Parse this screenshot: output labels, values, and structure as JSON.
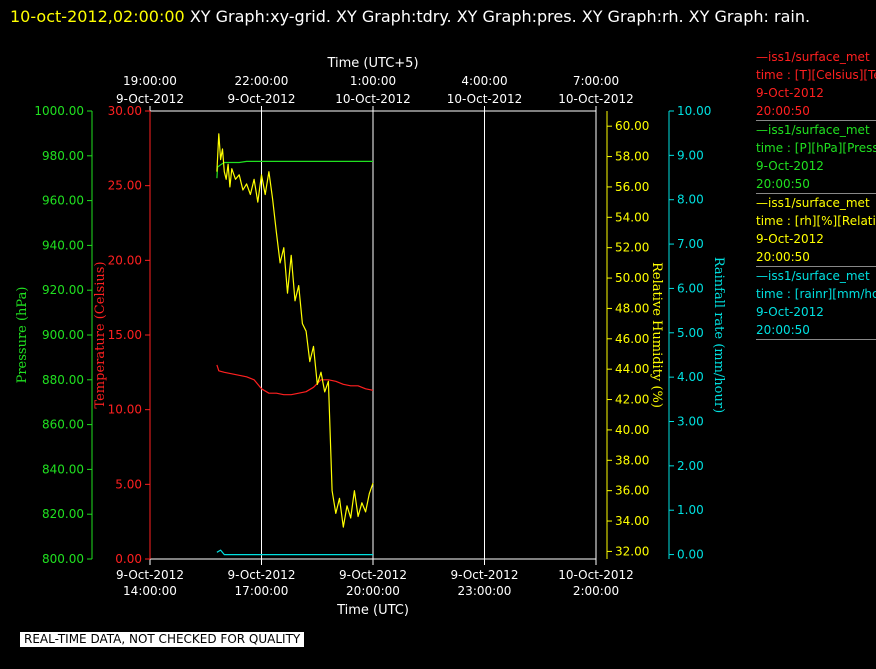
{
  "header": {
    "timestamp": "10-oct-2012,02:00:00",
    "graphs": "XY Graph:xy-grid.  XY Graph:tdry.  XY Graph:pres.  XY Graph:rh.  XY Graph: rain."
  },
  "legend": [
    {
      "color": "#ff2020",
      "line1": "—iss1/surface_met",
      "line2": "time : [T][Celsius][Temp",
      "date": "9-Oct-2012",
      "time": "20:00:50"
    },
    {
      "color": "#20e020",
      "line1": "—iss1/surface_met",
      "line2": "time : [P][hPa][Pressure",
      "date": "9-Oct-2012",
      "time": "20:00:50"
    },
    {
      "color": "#ffff00",
      "line1": "—iss1/surface_met",
      "line2": "time : [rh][%][Relative",
      "date": "9-Oct-2012",
      "time": "20:00:50"
    },
    {
      "color": "#00e0e0",
      "line1": "—iss1/surface_met",
      "line2": "time : [rainr][mm/hour",
      "date": "9-Oct-2012",
      "time": "20:00:50"
    }
  ],
  "footer": "REAL-TIME DATA, NOT CHECKED FOR QUALITY",
  "chart_data": {
    "type": "line",
    "grid": true,
    "top_axis": {
      "label": "Time (UTC+5)",
      "ticks": [
        {
          "x": 0,
          "time": "19:00:00",
          "date": "9-Oct-2012"
        },
        {
          "x": 3,
          "time": "22:00:00",
          "date": "9-Oct-2012"
        },
        {
          "x": 6,
          "time": "1:00:00",
          "date": "10-Oct-2012"
        },
        {
          "x": 9,
          "time": "4:00:00",
          "date": "10-Oct-2012"
        },
        {
          "x": 12,
          "time": "7:00:00",
          "date": "10-Oct-2012"
        }
      ]
    },
    "bottom_axis": {
      "label": "Time (UTC)",
      "xlim": [
        0,
        12
      ],
      "ticks": [
        {
          "x": 0,
          "date": "9-Oct-2012",
          "time": "14:00:00"
        },
        {
          "x": 3,
          "date": "9-Oct-2012",
          "time": "17:00:00"
        },
        {
          "x": 6,
          "date": "9-Oct-2012",
          "time": "20:00:00"
        },
        {
          "x": 9,
          "date": "9-Oct-2012",
          "time": "23:00:00"
        },
        {
          "x": 12,
          "date": "10-Oct-2012",
          "time": "2:00:00"
        }
      ]
    },
    "axes": {
      "pressure": {
        "label": "Pressure (hPa)",
        "color": "#20e020",
        "ylim": [
          800,
          1000
        ],
        "ticks": [
          "800.00",
          "820.00",
          "840.00",
          "860.00",
          "880.00",
          "900.00",
          "920.00",
          "940.00",
          "960.00",
          "980.00",
          "1000.00"
        ]
      },
      "temperature": {
        "label": "Temperature (Celsius)",
        "color": "#ff2020",
        "ylim": [
          0,
          30
        ],
        "ticks": [
          "0.00",
          "5.00",
          "10.00",
          "15.00",
          "20.00",
          "25.00",
          "30.00"
        ]
      },
      "rh": {
        "label": "Relative Humidity (%)",
        "color": "#ffff00",
        "ylim": [
          31.5,
          61
        ],
        "ticks": [
          "32.00",
          "34.00",
          "36.00",
          "38.00",
          "40.00",
          "42.00",
          "44.00",
          "46.00",
          "48.00",
          "50.00",
          "52.00",
          "54.00",
          "56.00",
          "58.00",
          "60.00"
        ]
      },
      "rain": {
        "label": "Rainfall rate (mm/hour)",
        "color": "#00e0e0",
        "ylim": [
          -0.1,
          10
        ],
        "ticks": [
          "0.00",
          "1.00",
          "2.00",
          "3.00",
          "4.00",
          "5.00",
          "6.00",
          "7.00",
          "8.00",
          "9.00",
          "10.00"
        ]
      }
    },
    "series": [
      {
        "axis": "pressure",
        "x": [
          1.8,
          1.82,
          1.9,
          2.0,
          2.2,
          2.4,
          2.6,
          3.0,
          3.5,
          4.0,
          4.5,
          5.0,
          5.5,
          6.0
        ],
        "y": [
          970,
          975,
          976,
          977,
          977,
          977,
          977.5,
          977.5,
          977.5,
          977.5,
          977.5,
          977.5,
          977.5,
          977.5
        ]
      },
      {
        "axis": "temperature",
        "x": [
          1.8,
          1.85,
          2.0,
          2.2,
          2.4,
          2.6,
          2.8,
          3.0,
          3.2,
          3.4,
          3.6,
          3.8,
          4.0,
          4.2,
          4.4,
          4.6,
          4.8,
          5.0,
          5.2,
          5.4,
          5.6,
          5.8,
          6.0
        ],
        "y": [
          13.0,
          12.6,
          12.5,
          12.4,
          12.3,
          12.2,
          12.0,
          11.4,
          11.1,
          11.1,
          11.0,
          11.0,
          11.1,
          11.2,
          11.5,
          12.0,
          12.0,
          11.9,
          11.7,
          11.6,
          11.6,
          11.4,
          11.3
        ]
      },
      {
        "axis": "rh",
        "x": [
          1.8,
          1.85,
          1.9,
          1.95,
          2.0,
          2.05,
          2.1,
          2.15,
          2.2,
          2.3,
          2.4,
          2.5,
          2.6,
          2.7,
          2.8,
          2.9,
          3.0,
          3.1,
          3.2,
          3.3,
          3.4,
          3.5,
          3.6,
          3.7,
          3.8,
          3.9,
          4.0,
          4.1,
          4.2,
          4.3,
          4.4,
          4.5,
          4.6,
          4.7,
          4.8,
          4.9,
          5.0,
          5.1,
          5.2,
          5.3,
          5.4,
          5.5,
          5.6,
          5.7,
          5.8,
          5.9,
          6.0
        ],
        "y": [
          57.0,
          59.5,
          57.8,
          58.5,
          57.0,
          56.5,
          57.5,
          56.0,
          57.2,
          56.5,
          56.8,
          55.8,
          56.2,
          55.5,
          56.5,
          55.0,
          56.8,
          55.5,
          57.0,
          55.2,
          53.0,
          51.0,
          52.0,
          49.0,
          51.5,
          48.5,
          49.5,
          47.0,
          46.5,
          44.5,
          45.5,
          43.0,
          43.8,
          42.5,
          43.2,
          36.0,
          34.5,
          35.5,
          33.6,
          35.0,
          34.2,
          36.0,
          34.3,
          35.2,
          34.6,
          35.8,
          36.5
        ]
      },
      {
        "axis": "rain",
        "x": [
          1.8,
          1.9,
          2.0,
          3.0,
          4.0,
          5.0,
          6.0
        ],
        "y": [
          0.05,
          0.1,
          0.0,
          0.0,
          0.0,
          0.0,
          0.0
        ]
      }
    ]
  }
}
